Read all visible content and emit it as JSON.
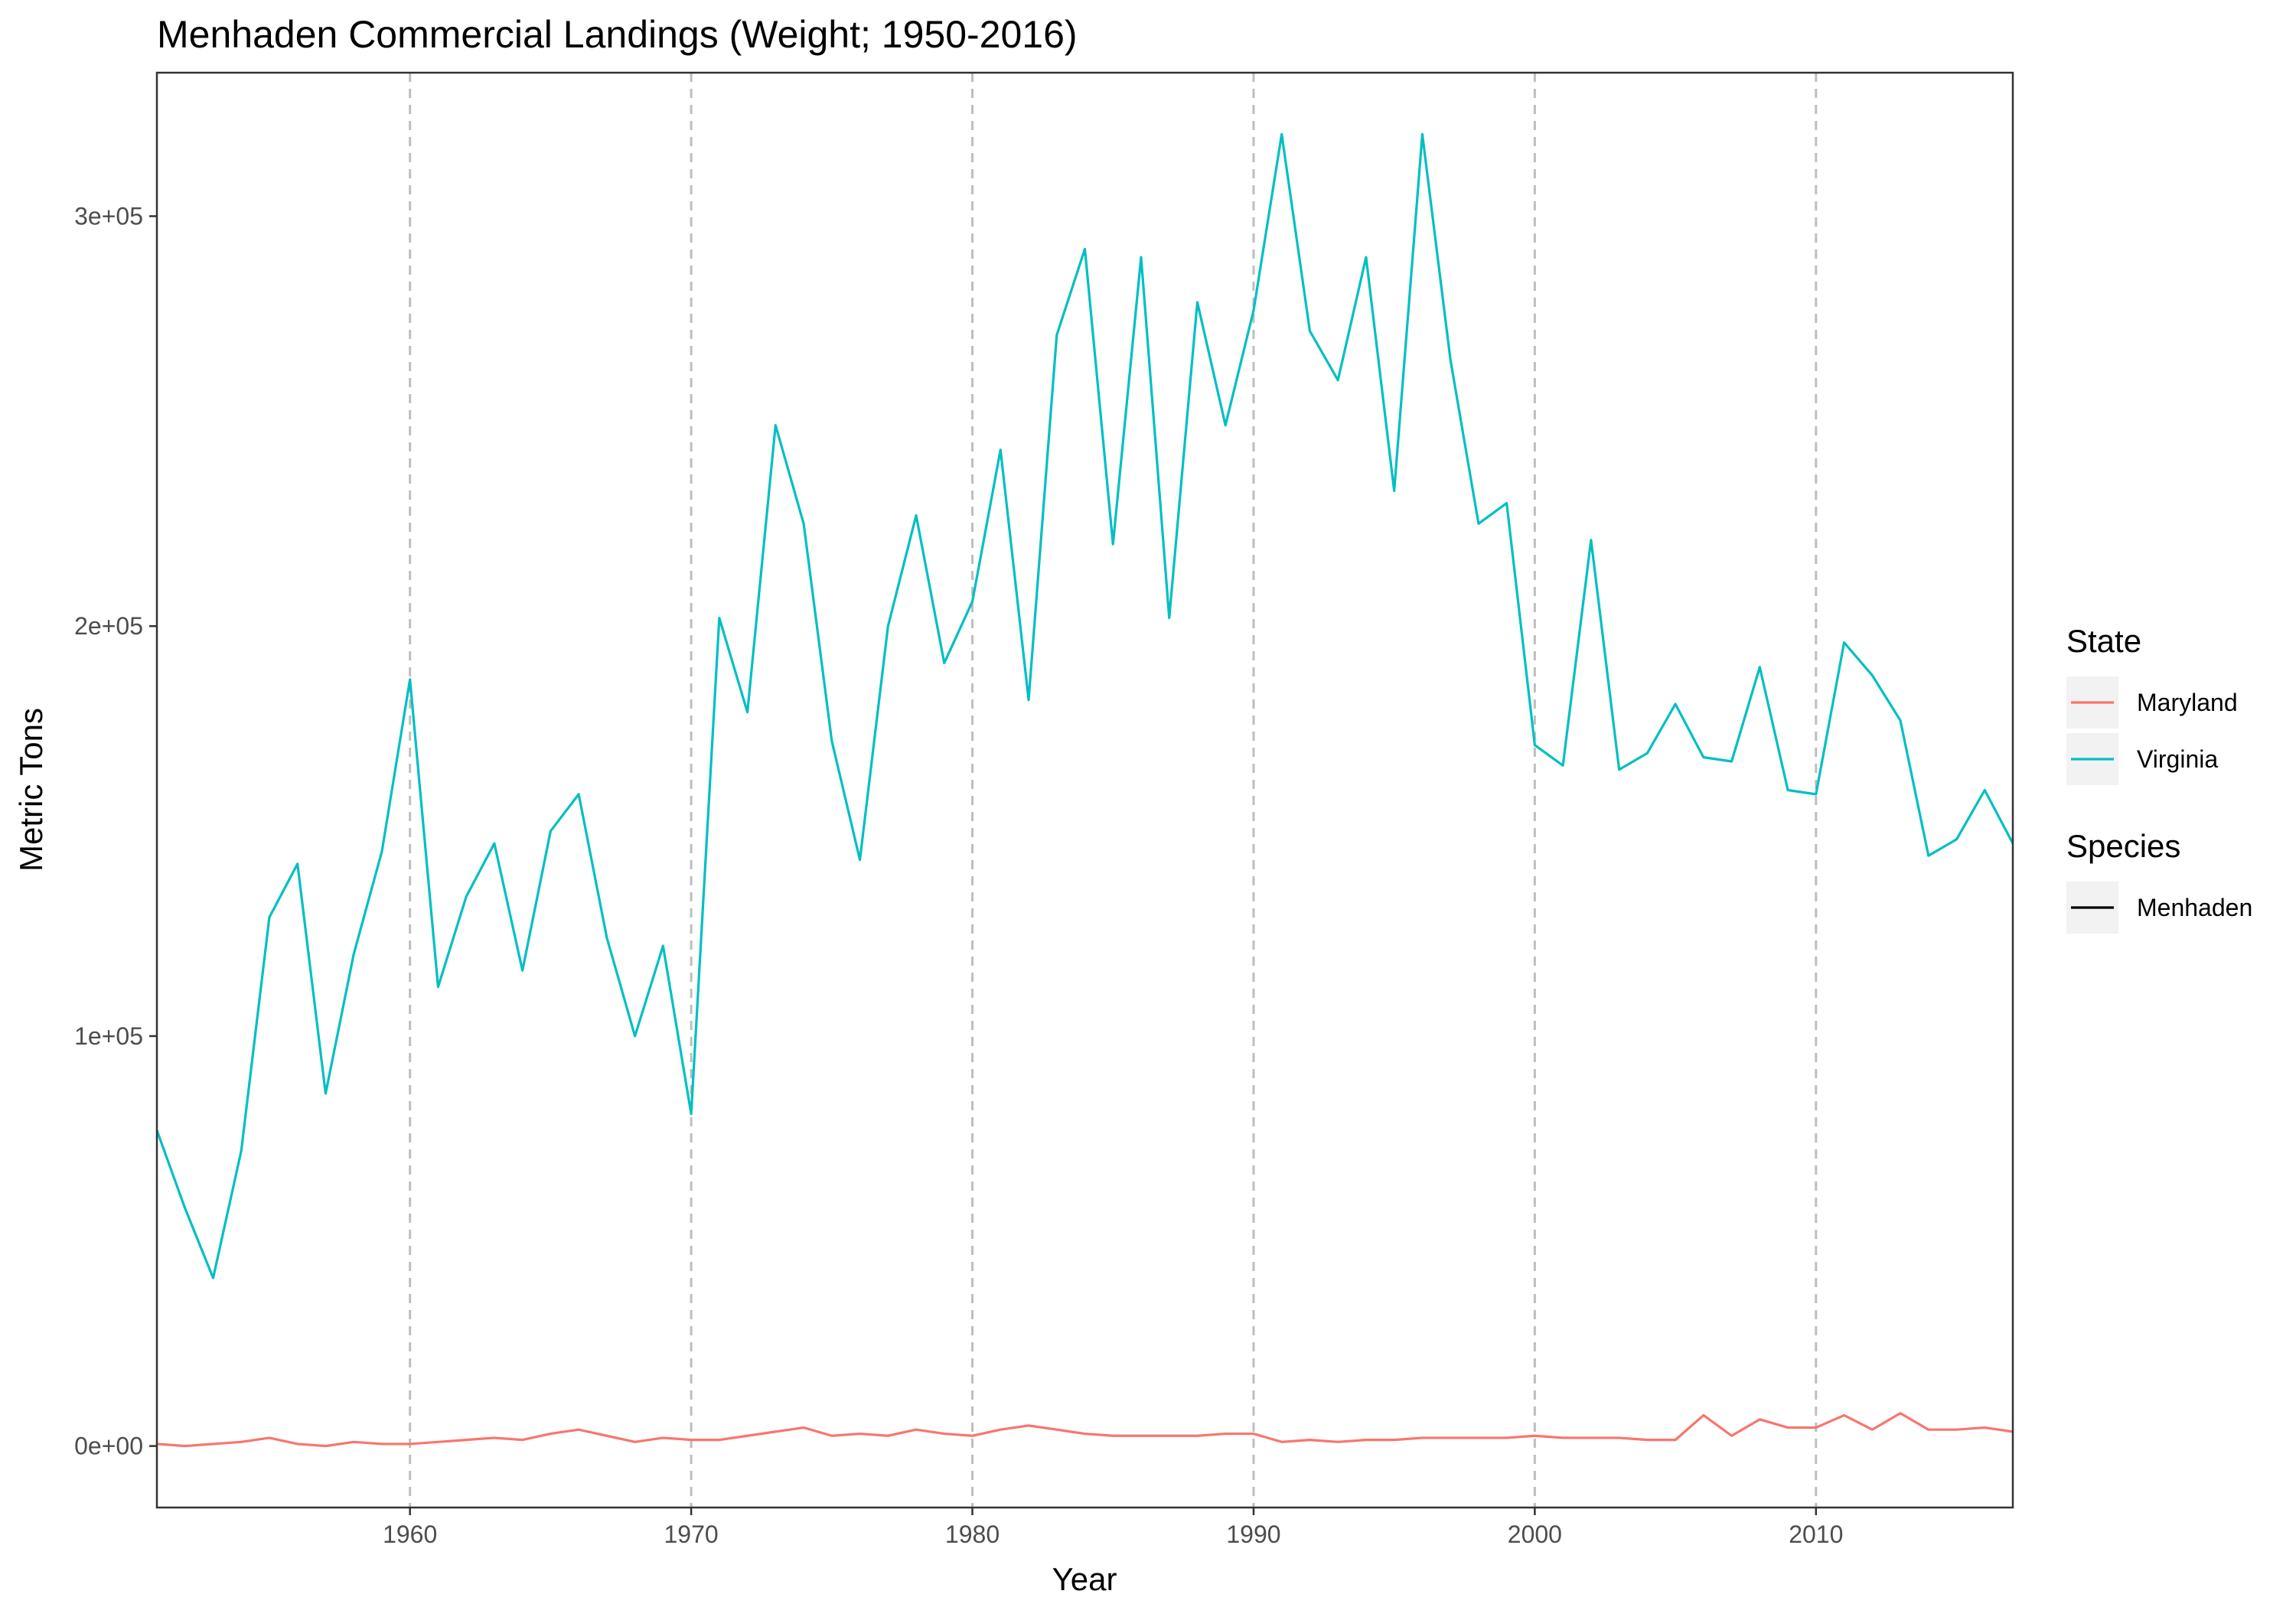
{
  "chart_data": {
    "type": "line",
    "title": "Menhaden Commercial Landings (Weight; 1950-2016)",
    "xlabel": "Year",
    "ylabel": "Metric Tons",
    "xlim": [
      1951,
      2017
    ],
    "ylim": [
      -15000,
      335000
    ],
    "x_ticks": [
      1960,
      1970,
      1980,
      1990,
      2000,
      2010
    ],
    "x_tick_labels": [
      "1960",
      "1970",
      "1980",
      "1990",
      "2000",
      "2010"
    ],
    "y_ticks": [
      0,
      100000,
      200000,
      300000
    ],
    "y_tick_labels": [
      "0e+00",
      "1e+05",
      "2e+05",
      "3e+05"
    ],
    "vlines": [
      1960,
      1970,
      1980,
      1990,
      2000,
      2010
    ],
    "grid": false,
    "legend_position": "right",
    "legends": [
      {
        "title": "State",
        "items": [
          {
            "label": "Maryland",
            "color": "#F8766D"
          },
          {
            "label": "Virginia",
            "color": "#00BFC4"
          }
        ]
      },
      {
        "title": "Species",
        "items": [
          {
            "label": "Menhaden",
            "color": "#000000"
          }
        ]
      }
    ],
    "x": [
      1951,
      1952,
      1953,
      1954,
      1955,
      1956,
      1957,
      1958,
      1959,
      1960,
      1961,
      1962,
      1963,
      1964,
      1965,
      1966,
      1967,
      1968,
      1969,
      1970,
      1971,
      1972,
      1973,
      1974,
      1975,
      1976,
      1977,
      1978,
      1979,
      1980,
      1981,
      1982,
      1983,
      1984,
      1985,
      1986,
      1987,
      1988,
      1989,
      1990,
      1991,
      1992,
      1993,
      1994,
      1995,
      1996,
      1997,
      1998,
      1999,
      2000,
      2001,
      2002,
      2003,
      2004,
      2005,
      2006,
      2007,
      2008,
      2009,
      2010,
      2011,
      2012,
      2013,
      2014,
      2015,
      2016,
      2017
    ],
    "series": [
      {
        "name": "Virginia",
        "color": "#00BFC4",
        "values": [
          77000,
          58000,
          41000,
          72000,
          129000,
          142000,
          86000,
          120000,
          145000,
          187000,
          112000,
          134000,
          147000,
          116000,
          150000,
          159000,
          124000,
          100000,
          122000,
          81000,
          202000,
          179000,
          249000,
          225000,
          172000,
          143000,
          200000,
          227000,
          191000,
          206000,
          243000,
          182000,
          271000,
          292000,
          220000,
          290000,
          202000,
          279000,
          249000,
          277000,
          320000,
          272000,
          260000,
          290000,
          233000,
          320000,
          265000,
          225000,
          230000,
          171000,
          166000,
          221000,
          165000,
          169000,
          181000,
          168000,
          167000,
          190000,
          160000,
          159000,
          196000,
          188000,
          177000,
          144000,
          148000,
          160000,
          147000
        ]
      },
      {
        "name": "Maryland",
        "color": "#F8766D",
        "values": [
          500,
          0,
          500,
          1000,
          2000,
          500,
          0,
          1000,
          500,
          500,
          1000,
          1500,
          2000,
          1500,
          3000,
          4000,
          2500,
          1000,
          2000,
          1500,
          1500,
          2500,
          3500,
          4500,
          2500,
          3000,
          2500,
          4000,
          3000,
          2500,
          4000,
          5000,
          4000,
          3000,
          2500,
          2500,
          2500,
          2500,
          3000,
          3000,
          1000,
          1500,
          1000,
          1500,
          1500,
          2000,
          2000,
          2000,
          2000,
          2500,
          2000,
          2000,
          2000,
          1500,
          1500,
          7500,
          2500,
          6500,
          4500,
          4500,
          7500,
          4000,
          8000,
          4000,
          4000,
          4500,
          3500
        ]
      }
    ]
  }
}
